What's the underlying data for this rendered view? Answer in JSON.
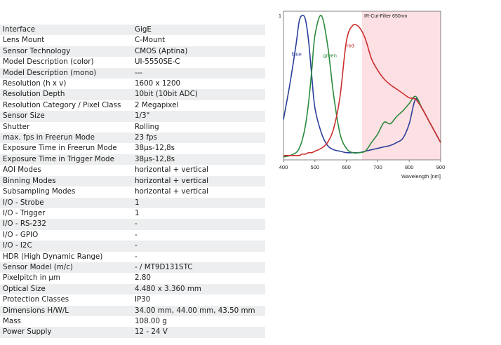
{
  "specs": [
    {
      "label": "Interface",
      "value": "GigE"
    },
    {
      "label": "Lens Mount",
      "value": "C-Mount"
    },
    {
      "label": "Sensor Technology",
      "value": "CMOS (Aptina)"
    },
    {
      "label": "Model Description (color)",
      "value": "UI-5550SE-C"
    },
    {
      "label": "Model Description (mono)",
      "value": "---"
    },
    {
      "label": "Resolution (h x v)",
      "value": "1600 x 1200"
    },
    {
      "label": "Resolution Depth",
      "value": "10bit (10bit ADC)"
    },
    {
      "label": "Resolution Category / Pixel Class",
      "value": "2 Megapixel"
    },
    {
      "label": "Sensor Size",
      "value": "1/3\""
    },
    {
      "label": "Shutter",
      "value": "Rolling"
    },
    {
      "label": "max. fps in Freerun Mode",
      "value": "23 fps"
    },
    {
      "label": "Exposure Time in Freerun Mode",
      "value": "38µs-12,8s"
    },
    {
      "label": "Exposure Time in Trigger Mode",
      "value": "38µs-12,8s"
    },
    {
      "label": "AOI Modes",
      "value": "horizontal + vertical"
    },
    {
      "label": "Binning Modes",
      "value": "horizontal + vertical"
    },
    {
      "label": "Subsampling Modes",
      "value": "horizontal + vertical"
    },
    {
      "label": "I/O - Strobe",
      "value": "1"
    },
    {
      "label": "I/O - Trigger",
      "value": "1"
    },
    {
      "label": "I/O - RS-232",
      "value": "-"
    },
    {
      "label": "I/O - GPIO",
      "value": "-"
    },
    {
      "label": "I/O - I2C",
      "value": "-"
    },
    {
      "label": "HDR (High Dynamic Range)",
      "value": "-"
    },
    {
      "label": "Sensor Model (m/c)",
      "value": "- / MT9D131STC"
    },
    {
      "label": "Pixelpitch in µm",
      "value": "2.80"
    },
    {
      "label": "Optical Size",
      "value": "4.480 x 3.360 mm"
    },
    {
      "label": "Protection Classes",
      "value": "IP30"
    },
    {
      "label": "Dimensions H/W/L",
      "value": "34.00 mm, 44.00 mm, 43.50 mm"
    },
    {
      "label": "Mass",
      "value": "108.00 g"
    },
    {
      "label": "Power Supply",
      "value": "12 - 24 V"
    }
  ],
  "chart_data": {
    "type": "line",
    "xlabel": "Wavelength [nm]",
    "ylabel": "",
    "xlim": [
      400,
      900
    ],
    "ylim": [
      0,
      1
    ],
    "xticks": [
      400,
      500,
      600,
      700,
      800,
      900
    ],
    "yticks": [
      1
    ],
    "x": [
      400,
      420,
      440,
      450,
      460,
      470,
      480,
      490,
      500,
      520,
      540,
      560,
      580,
      600,
      620,
      640,
      660,
      680,
      700,
      720,
      740,
      760,
      780,
      800,
      820,
      840,
      860,
      880,
      900
    ],
    "region": {
      "label": "IR-Cut-Filter 650nm",
      "from": 650,
      "to": 900,
      "color": "#fde0e3"
    },
    "series": [
      {
        "name": "blue",
        "color": "#2c3f9a",
        "values": [
          0.28,
          0.52,
          0.8,
          0.96,
          1.0,
          0.97,
          0.82,
          0.58,
          0.36,
          0.19,
          0.1,
          0.07,
          0.06,
          0.05,
          0.05,
          0.05,
          0.06,
          0.07,
          0.08,
          0.09,
          0.1,
          0.12,
          0.15,
          0.25,
          0.42,
          0.36,
          0.28,
          0.2,
          0.12
        ]
      },
      {
        "name": "green",
        "color": "#2a8a3c",
        "values": [
          0.02,
          0.03,
          0.05,
          0.08,
          0.14,
          0.24,
          0.4,
          0.62,
          0.86,
          1.0,
          0.8,
          0.44,
          0.18,
          0.08,
          0.05,
          0.05,
          0.06,
          0.12,
          0.18,
          0.26,
          0.25,
          0.3,
          0.34,
          0.39,
          0.44,
          0.36,
          0.28,
          0.2,
          0.12
        ]
      },
      {
        "name": "red",
        "color": "#cc2e2e",
        "values": [
          0.03,
          0.03,
          0.03,
          0.03,
          0.04,
          0.04,
          0.05,
          0.05,
          0.06,
          0.08,
          0.12,
          0.22,
          0.44,
          0.82,
          0.93,
          0.92,
          0.84,
          0.7,
          0.62,
          0.56,
          0.52,
          0.49,
          0.46,
          0.43,
          0.42,
          0.36,
          0.28,
          0.2,
          0.12
        ]
      }
    ]
  }
}
